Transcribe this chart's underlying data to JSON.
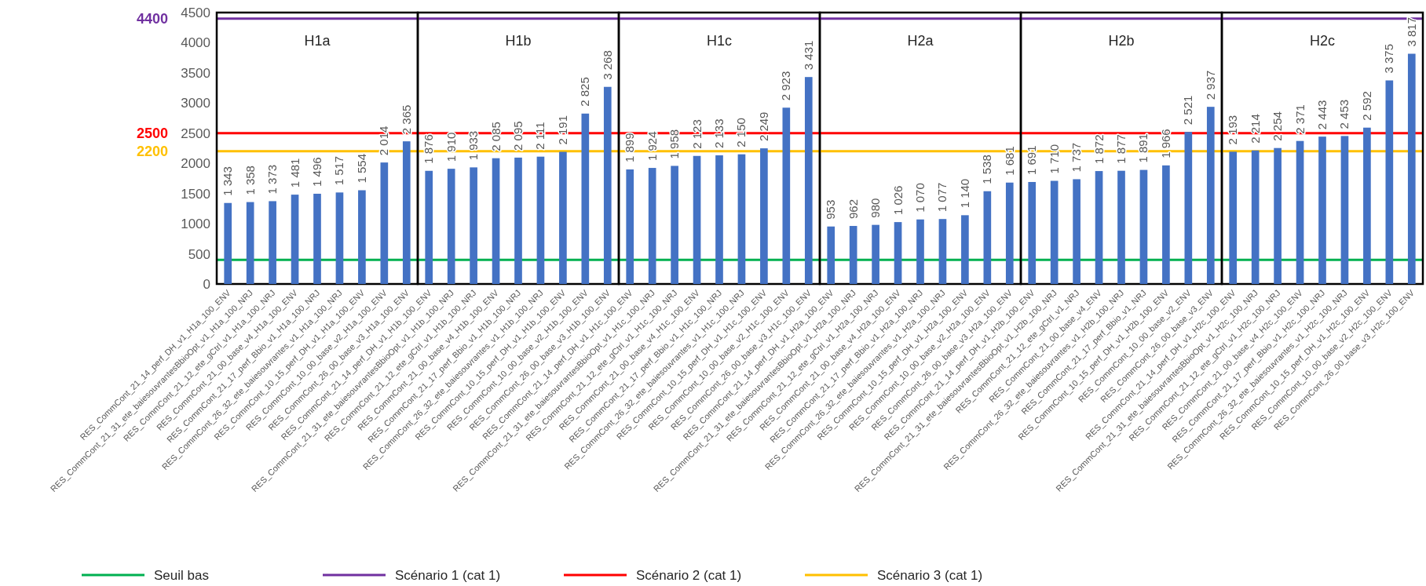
{
  "chart_data": [
    {
      "type": "bar",
      "title": "H1a",
      "categories": [
        "RES_CommCont_21_14_perf_DH_v1_H1a_100_ENV",
        "RES_CommCont_21_31_ete_baiesouvrantesBbioOpt_v1_H1a_100_NRJ",
        "RES_CommCont_21_12_ete_gCtrl_v1_H1a_100_NRJ",
        "RES_CommCont_21_00_base_v4_H1a_100_ENV",
        "RES_CommCont_21_17_perf_Bbio_v1_H1a_100_NRJ",
        "RES_CommCont_26_32_ete_baiesouvrantes_v1_H1a_100_NRJ",
        "RES_CommCont_10_15_perf_DH_v1_H1a_100_ENV",
        "RES_CommCont_10_00_base_v2_H1a_100_ENV",
        "RES_CommCont_26_00_base_v3_H1a_100_ENV"
      ],
      "series": [
        {
          "color": "#4472c4",
          "values": [
            1343,
            1358,
            1373,
            1481,
            1496,
            1517,
            1554,
            2014,
            2365
          ],
          "value_labels": [
            "1 343",
            "1 358",
            "1 373",
            "1 481",
            "1 496",
            "1 517",
            "1 554",
            "2 014",
            "2 365"
          ]
        }
      ],
      "ylim": [
        0,
        4500
      ],
      "yticks": [
        0,
        500,
        1000,
        1500,
        2000,
        2500,
        3000,
        3500,
        4000,
        4500
      ],
      "legend": "bottom",
      "ref_lines": [
        {
          "axis": "y",
          "value": 400,
          "label": "Seuil bas",
          "color": "#00b050"
        },
        {
          "axis": "y",
          "value": 4400,
          "label": "Scénario 1 (cat 1)",
          "color": "#7030a0"
        },
        {
          "axis": "y",
          "value": 2500,
          "label": "Scénario 2 (cat 1)",
          "color": "#ff0000"
        },
        {
          "axis": "y",
          "value": 2200,
          "label": "Scénario 3 (cat 1)",
          "color": "#ffc000"
        }
      ],
      "annotations": [
        "4400",
        "2500",
        "2200"
      ]
    },
    {
      "type": "bar",
      "title": "H1b",
      "categories": [
        "RES_CommCont_21_14_perf_DH_v1_H1b_100_ENV",
        "RES_CommCont_21_31_ete_baiesouvrantesBbioOpt_v1_H1b_100_NRJ",
        "RES_CommCont_21_12_ete_gCtrl_v1_H1b_100_NRJ",
        "RES_CommCont_21_00_base_v4_H1b_100_ENV",
        "RES_CommCont_21_17_perf_Bbio_v1_H1b_100_NRJ",
        "RES_CommCont_26_32_ete_baiesouvrantes_v1_H1b_100_NRJ",
        "RES_CommCont_10_15_perf_DH_v1_H1b_100_ENV",
        "RES_CommCont_10_00_base_v2_H1b_100_ENV",
        "RES_CommCont_26_00_base_v3_H1b_100_ENV"
      ],
      "series": [
        {
          "color": "#4472c4",
          "values": [
            1876,
            1910,
            1933,
            2085,
            2095,
            2111,
            2191,
            2825,
            3268
          ],
          "value_labels": [
            "1 876",
            "1 910",
            "1 933",
            "2 085",
            "2 095",
            "2 111",
            "2 191",
            "2 825",
            "3 268"
          ]
        }
      ],
      "ylim": [
        0,
        4500
      ],
      "tick_labels": "x",
      "ref_lines": [
        {
          "axis": "y",
          "value": 400,
          "color": "#00b050"
        },
        {
          "axis": "y",
          "value": 4400,
          "color": "#7030a0"
        },
        {
          "axis": "y",
          "value": 2500,
          "color": "#ff0000"
        },
        {
          "axis": "y",
          "value": 2200,
          "color": "#ffc000"
        }
      ]
    },
    {
      "type": "bar",
      "title": "H1c",
      "categories": [
        "RES_CommCont_21_14_perf_DH_v1_H1c_100_ENV",
        "RES_CommCont_21_31_ete_baiesouvrantesBbioOpt_v1_H1c_100_NRJ",
        "RES_CommCont_21_12_ete_gCtrl_v1_H1c_100_NRJ",
        "RES_CommCont_21_00_base_v4_H1c_100_ENV",
        "RES_CommCont_21_17_perf_Bbio_v1_H1c_100_NRJ",
        "RES_CommCont_26_32_ete_baiesouvrantes_v1_H1c_100_NRJ",
        "RES_CommCont_10_15_perf_DH_v1_H1c_100_ENV",
        "RES_CommCont_10_00_base_v2_H1c_100_ENV",
        "RES_CommCont_26_00_base_v3_H1c_100_ENV"
      ],
      "series": [
        {
          "color": "#4472c4",
          "values": [
            1899,
            1924,
            1958,
            2123,
            2133,
            2150,
            2249,
            2923,
            3431
          ],
          "value_labels": [
            "1 899",
            "1 924",
            "1 958",
            "2 123",
            "2 133",
            "2 150",
            "2 249",
            "2 923",
            "3 431"
          ]
        }
      ],
      "ylim": [
        0,
        4500
      ],
      "tick_labels": "x",
      "ref_lines": [
        {
          "axis": "y",
          "value": 400,
          "color": "#00b050"
        },
        {
          "axis": "y",
          "value": 4400,
          "color": "#7030a0"
        },
        {
          "axis": "y",
          "value": 2500,
          "color": "#ff0000"
        },
        {
          "axis": "y",
          "value": 2200,
          "color": "#ffc000"
        }
      ]
    },
    {
      "type": "bar",
      "title": "H2a",
      "categories": [
        "RES_CommCont_21_14_perf_DH_v1_H2a_100_ENV",
        "RES_CommCont_21_31_ete_baiesouvrantesBbioOpt_v1_H2a_100_NRJ",
        "RES_CommCont_21_12_ete_gCtrl_v1_H2a_100_NRJ",
        "RES_CommCont_21_00_base_v4_H2a_100_ENV",
        "RES_CommCont_21_17_perf_Bbio_v1_H2a_100_NRJ",
        "RES_CommCont_26_32_ete_baiesouvrantes_v1_H2a_100_NRJ",
        "RES_CommCont_10_15_perf_DH_v1_H2a_100_ENV",
        "RES_CommCont_10_00_base_v2_H2a_100_ENV",
        "RES_CommCont_26_00_base_v3_H2a_100_ENV"
      ],
      "series": [
        {
          "color": "#4472c4",
          "values": [
            953,
            962,
            980,
            1026,
            1070,
            1077,
            1140,
            1538,
            1681
          ],
          "value_labels": [
            "953",
            "962",
            "980",
            "1 026",
            "1 070",
            "1 077",
            "1 140",
            "1 538",
            "1 681"
          ]
        }
      ],
      "ylim": [
        0,
        4500
      ],
      "tick_labels": "x",
      "ref_lines": [
        {
          "axis": "y",
          "value": 400,
          "color": "#00b050"
        },
        {
          "axis": "y",
          "value": 4400,
          "color": "#7030a0"
        },
        {
          "axis": "y",
          "value": 2500,
          "color": "#ff0000"
        },
        {
          "axis": "y",
          "value": 2200,
          "color": "#ffc000"
        }
      ]
    },
    {
      "type": "bar",
      "title": "H2b",
      "categories": [
        "RES_CommCont_21_14_perf_DH_v1_H2b_100_ENV",
        "RES_CommCont_21_31_ete_baiesouvrantesBbioOpt_v1_H2b_100_NRJ",
        "RES_CommCont_21_12_ete_gCtrl_v1_NRJ",
        "RES_CommCont_21_00_base_v4_ENV",
        "RES_CommCont_26_32_ete_baiesouvrantes_v1_H2b_100_NRJ",
        "RES_CommCont_21_17_perf_Bbio_v1_NRJ",
        "RES_CommCont_10_15_perf_DH_v1_H2b_100_ENV",
        "RES_CommCont_10_00_base_v2_ENV",
        "RES_CommCont_26_00_base_v3_ENV"
      ],
      "series": [
        {
          "color": "#4472c4",
          "values": [
            1691,
            1710,
            1737,
            1872,
            1877,
            1891,
            1966,
            2521,
            2937
          ],
          "value_labels": [
            "1 691",
            "1 710",
            "1 737",
            "1 872",
            "1 877",
            "1 891",
            "1 966",
            "2 521",
            "2 937"
          ]
        }
      ],
      "ylim": [
        0,
        4500
      ],
      "tick_labels": "x",
      "ref_lines": [
        {
          "axis": "y",
          "value": 400,
          "color": "#00b050"
        },
        {
          "axis": "y",
          "value": 4400,
          "color": "#7030a0"
        },
        {
          "axis": "y",
          "value": 2500,
          "color": "#ff0000"
        },
        {
          "axis": "y",
          "value": 2200,
          "color": "#ffc000"
        }
      ]
    },
    {
      "type": "bar",
      "title": "H2c",
      "categories": [
        "RES_CommCont_21_14_perf_DH_v1_H2c_100_ENV",
        "RES_CommCont_21_31_ete_baiesouvrantesBbioOpt_v1_H2c_100_NRJ",
        "RES_CommCont_21_12_ete_gCtrl_v1_H2c_100_NRJ",
        "RES_CommCont_21_00_base_v4_H2c_100_ENV",
        "RES_CommCont_21_17_perf_Bbio_v1_H2c_100_NRJ",
        "RES_CommCont_26_32_ete_baiesouvrantes_v1_H2c_100_NRJ",
        "RES_CommCont_10_15_perf_DH_v1_H2c_100_ENV",
        "RES_CommCont_10_00_base_v2_H2c_100_ENV",
        "RES_CommCont_26_00_base_v3_H2c_100_ENV"
      ],
      "series": [
        {
          "color": "#4472c4",
          "values": [
            2193,
            2214,
            2254,
            2371,
            2443,
            2453,
            2592,
            3375,
            3817
          ],
          "value_labels": [
            "2 193",
            "2 214",
            "2 254",
            "2 371",
            "2 443",
            "2 453",
            "2 592",
            "3 375",
            "3 817"
          ]
        }
      ],
      "ylim": [
        0,
        4500
      ],
      "tick_labels": "x",
      "ref_lines": [
        {
          "axis": "y",
          "value": 400,
          "color": "#00b050"
        },
        {
          "axis": "y",
          "value": 4400,
          "color": "#7030a0"
        },
        {
          "axis": "y",
          "value": 2500,
          "color": "#ff0000"
        },
        {
          "axis": "y",
          "value": 2200,
          "color": "#ffc000"
        }
      ]
    }
  ]
}
